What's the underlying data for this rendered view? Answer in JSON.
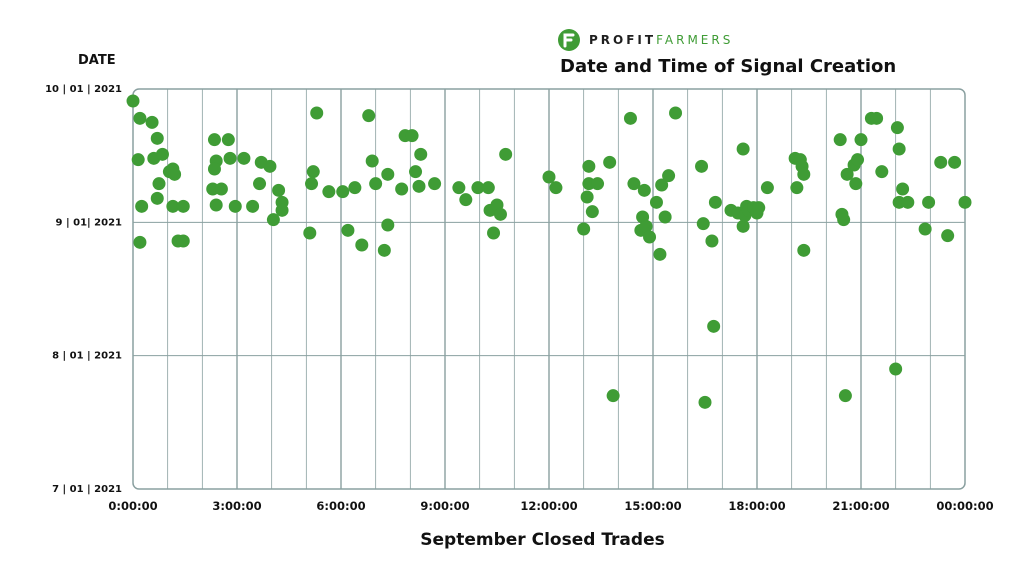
{
  "logo": {
    "brand_part1": "PROFIT",
    "brand_part2": "FARMERS"
  },
  "colors": {
    "point": "#3f9c35",
    "grid": "#8aa0a0",
    "border": "#8aa0a0"
  },
  "chart_data": {
    "type": "scatter",
    "title": "Date and Time of Signal Creation",
    "xlabel": "September Closed Trades",
    "ylabel": "DATE",
    "x_ticks": [
      "0:00:00",
      "3:00:00",
      "6:00:00",
      "9:00:00",
      "12:00:00",
      "15:00:00",
      "18:00:00",
      "21:00:00",
      "00:00:00"
    ],
    "y_ticks": [
      {
        "label": "10 | 01 | 2021",
        "value": 3
      },
      {
        "label": "9 | 01| 2021",
        "value": 2
      },
      {
        "label": "8 | 01 | 2021",
        "value": 1
      },
      {
        "label": "7 | 01 | 2021",
        "value": 0
      }
    ],
    "xlim": [
      0,
      24
    ],
    "ylim": [
      0,
      3
    ],
    "grid": true,
    "series": [
      {
        "points": [
          [
            0.0,
            2.91
          ],
          [
            0.2,
            2.78
          ],
          [
            0.15,
            2.47
          ],
          [
            0.25,
            2.12
          ],
          [
            0.2,
            1.85
          ],
          [
            0.55,
            2.75
          ],
          [
            0.6,
            2.48
          ],
          [
            0.7,
            2.63
          ],
          [
            0.75,
            2.29
          ],
          [
            0.7,
            2.18
          ],
          [
            0.85,
            2.51
          ],
          [
            1.05,
            2.38
          ],
          [
            1.15,
            2.4
          ],
          [
            1.2,
            2.36
          ],
          [
            1.15,
            2.12
          ],
          [
            1.3,
            1.86
          ],
          [
            1.45,
            1.86
          ],
          [
            1.45,
            2.12
          ],
          [
            2.35,
            2.62
          ],
          [
            2.4,
            2.46
          ],
          [
            2.35,
            2.4
          ],
          [
            2.3,
            2.25
          ],
          [
            2.4,
            2.13
          ],
          [
            2.55,
            2.25
          ],
          [
            2.75,
            2.62
          ],
          [
            2.8,
            2.48
          ],
          [
            2.95,
            2.12
          ],
          [
            3.2,
            2.48
          ],
          [
            3.45,
            2.12
          ],
          [
            3.65,
            2.29
          ],
          [
            3.7,
            2.45
          ],
          [
            3.95,
            2.42
          ],
          [
            4.05,
            2.02
          ],
          [
            4.2,
            2.24
          ],
          [
            4.3,
            2.15
          ],
          [
            4.3,
            2.09
          ],
          [
            5.1,
            1.92
          ],
          [
            5.15,
            2.29
          ],
          [
            5.2,
            2.38
          ],
          [
            5.3,
            2.82
          ],
          [
            5.65,
            2.23
          ],
          [
            6.05,
            2.23
          ],
          [
            6.2,
            1.94
          ],
          [
            6.4,
            2.26
          ],
          [
            6.6,
            1.83
          ],
          [
            6.8,
            2.8
          ],
          [
            6.9,
            2.46
          ],
          [
            7.0,
            2.29
          ],
          [
            7.25,
            1.79
          ],
          [
            7.35,
            1.98
          ],
          [
            7.35,
            2.36
          ],
          [
            7.75,
            2.25
          ],
          [
            7.85,
            2.65
          ],
          [
            8.05,
            2.65
          ],
          [
            8.15,
            2.38
          ],
          [
            8.25,
            2.27
          ],
          [
            8.3,
            2.51
          ],
          [
            8.7,
            2.29
          ],
          [
            9.4,
            2.26
          ],
          [
            9.6,
            2.17
          ],
          [
            9.95,
            2.26
          ],
          [
            10.25,
            2.26
          ],
          [
            10.3,
            2.09
          ],
          [
            10.4,
            1.92
          ],
          [
            10.5,
            2.13
          ],
          [
            10.6,
            2.06
          ],
          [
            10.75,
            2.51
          ],
          [
            12.0,
            2.34
          ],
          [
            12.2,
            2.26
          ],
          [
            13.0,
            1.95
          ],
          [
            13.1,
            2.19
          ],
          [
            13.15,
            2.29
          ],
          [
            13.15,
            2.42
          ],
          [
            13.25,
            2.08
          ],
          [
            13.4,
            2.29
          ],
          [
            13.75,
            2.45
          ],
          [
            13.85,
            0.7
          ],
          [
            14.35,
            2.78
          ],
          [
            14.45,
            2.29
          ],
          [
            14.65,
            1.94
          ],
          [
            14.7,
            2.04
          ],
          [
            14.75,
            2.24
          ],
          [
            14.8,
            1.97
          ],
          [
            14.9,
            1.89
          ],
          [
            15.1,
            2.15
          ],
          [
            15.2,
            1.76
          ],
          [
            15.25,
            2.28
          ],
          [
            15.35,
            2.04
          ],
          [
            15.45,
            2.35
          ],
          [
            15.65,
            2.82
          ],
          [
            16.4,
            2.42
          ],
          [
            16.45,
            1.99
          ],
          [
            16.5,
            0.65
          ],
          [
            16.7,
            1.86
          ],
          [
            16.75,
            1.22
          ],
          [
            16.8,
            2.15
          ],
          [
            17.25,
            2.09
          ],
          [
            17.45,
            2.07
          ],
          [
            17.6,
            2.55
          ],
          [
            17.6,
            1.97
          ],
          [
            17.65,
            2.05
          ],
          [
            17.7,
            2.12
          ],
          [
            17.75,
            2.09
          ],
          [
            17.9,
            2.11
          ],
          [
            18.0,
            2.07
          ],
          [
            18.05,
            2.11
          ],
          [
            18.3,
            2.26
          ],
          [
            19.1,
            2.48
          ],
          [
            19.15,
            2.26
          ],
          [
            19.25,
            2.47
          ],
          [
            19.3,
            2.42
          ],
          [
            19.35,
            2.36
          ],
          [
            19.35,
            1.79
          ],
          [
            20.4,
            2.62
          ],
          [
            20.45,
            2.06
          ],
          [
            20.5,
            2.02
          ],
          [
            20.55,
            0.7
          ],
          [
            20.6,
            2.36
          ],
          [
            20.8,
            2.43
          ],
          [
            20.85,
            2.29
          ],
          [
            20.9,
            2.47
          ],
          [
            21.0,
            2.62
          ],
          [
            21.3,
            2.78
          ],
          [
            21.45,
            2.78
          ],
          [
            21.6,
            2.38
          ],
          [
            22.0,
            0.9
          ],
          [
            22.05,
            2.71
          ],
          [
            22.1,
            2.55
          ],
          [
            22.1,
            2.15
          ],
          [
            22.2,
            2.25
          ],
          [
            22.35,
            2.15
          ],
          [
            22.85,
            1.95
          ],
          [
            22.95,
            2.15
          ],
          [
            23.3,
            2.45
          ],
          [
            23.5,
            1.9
          ],
          [
            23.7,
            2.45
          ],
          [
            24.0,
            2.15
          ]
        ]
      }
    ]
  }
}
